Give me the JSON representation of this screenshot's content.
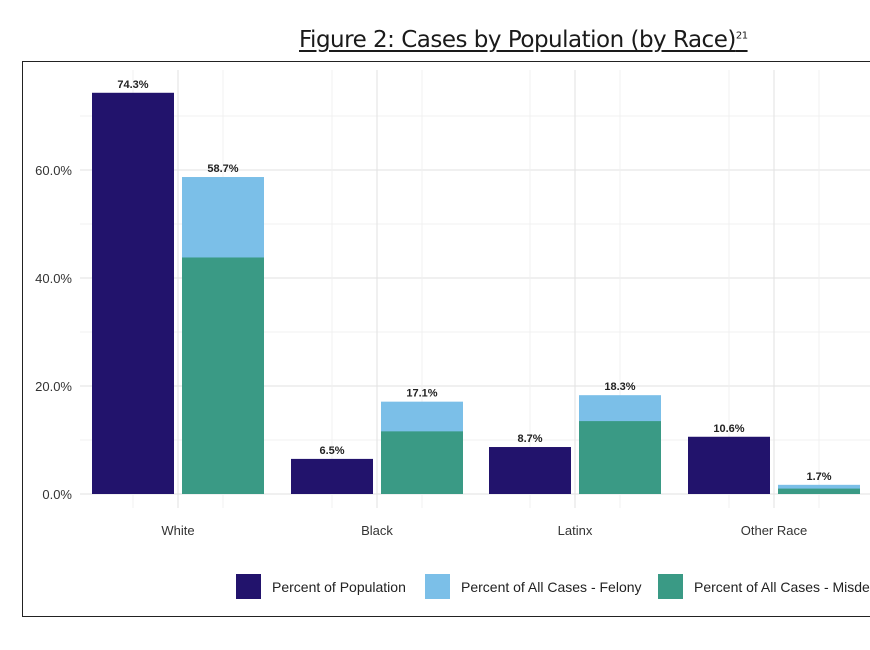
{
  "page": {
    "title": "Figure 2: Cases by Population (by Race)",
    "title_sup": "21"
  },
  "chart_data": {
    "type": "bar",
    "title": "Figure 2: Cases by Population (by Race)",
    "xlabel": "",
    "ylabel": "",
    "categories": [
      "White",
      "Black",
      "Latinx",
      "Other Race"
    ],
    "ylim": [
      0,
      75
    ],
    "yticks": [
      0,
      20,
      40,
      60
    ],
    "ytick_labels": [
      "0.0%",
      "20.0%",
      "40.0%",
      "60.0%"
    ],
    "grid": true,
    "legend_position": "bottom",
    "series": [
      {
        "name": "Percent of Population",
        "values": [
          74.3,
          6.5,
          8.7,
          10.6
        ],
        "labels": [
          "74.3%",
          "6.5%",
          "8.7%",
          "10.6%"
        ],
        "color": "#22136c"
      },
      {
        "name": "Percent of All Cases - Felony",
        "stack_total": [
          58.7,
          17.1,
          18.3,
          1.7
        ],
        "labels": [
          "58.7%",
          "17.1%",
          "18.3%",
          "1.7%"
        ],
        "color": "#7bbfe8"
      },
      {
        "name": "Percent of All Cases - Misdemeanor",
        "legend_visible_text": "Percent of All Cases - Misde",
        "values": [
          43.8,
          11.6,
          13.5,
          1.0
        ],
        "color": "#3a9a85"
      }
    ]
  }
}
